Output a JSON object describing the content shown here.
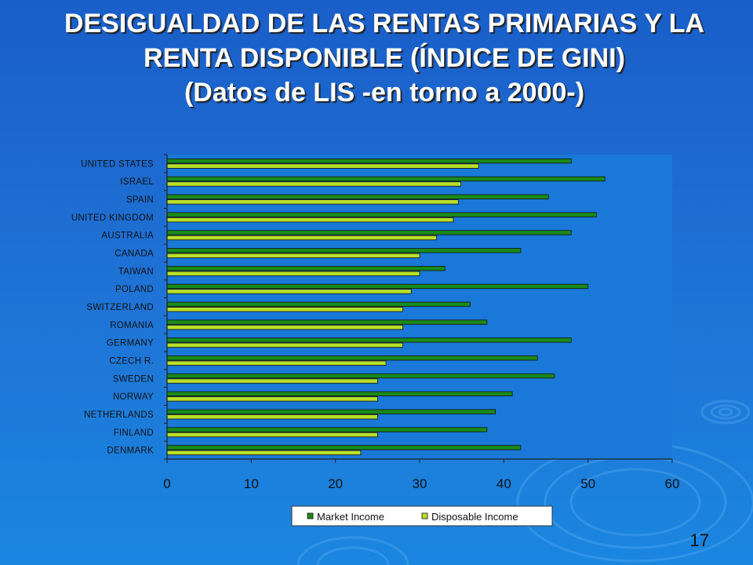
{
  "slide": {
    "title_line1": "DESIGUALDAD DE LAS RENTAS PRIMARIAS Y LA",
    "title_line2": "RENTA DISPONIBLE (ÍNDICE DE GINI)",
    "title_line3": "(Datos de LIS -en torno a 2000-)",
    "page_number": "17"
  },
  "colors": {
    "market": "#1a8a1a",
    "disposable": "#b8e02a",
    "plot_bg": "#1a78d8"
  },
  "chart_data": {
    "type": "bar",
    "orientation": "horizontal",
    "categories": [
      "UNITED STATES",
      "ISRAEL",
      "SPAIN",
      "UNITED KINGDOM",
      "AUSTRALIA",
      "CANADA",
      "TAIWAN",
      "POLAND",
      "SWITZERLAND",
      "ROMANIA",
      "GERMANY",
      "CZECH R.",
      "SWEDEN",
      "NORWAY",
      "NETHERLANDS",
      "FINLAND",
      "DENMARK"
    ],
    "series": [
      {
        "name": "Market Income",
        "values": [
          48,
          52,
          45.3,
          51,
          48,
          42,
          33,
          50,
          36,
          38,
          48,
          44,
          46,
          41,
          39,
          38,
          42
        ]
      },
      {
        "name": "Disposable Income",
        "values": [
          37,
          34.9,
          34.6,
          34,
          32,
          30,
          30,
          29,
          28,
          28,
          28,
          26,
          25,
          25,
          25,
          25,
          23
        ]
      }
    ],
    "xlim": [
      0,
      60
    ],
    "xticks": [
      "0",
      "10",
      "20",
      "30",
      "40",
      "50",
      "60"
    ],
    "grid": false,
    "legend_position": "bottom"
  }
}
